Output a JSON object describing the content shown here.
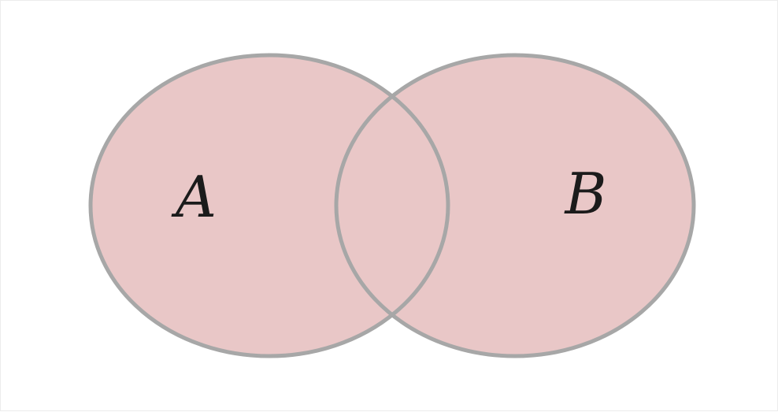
{
  "diagram": {
    "type": "venn",
    "sets": [
      {
        "label": "A"
      },
      {
        "label": "B"
      }
    ],
    "colors": {
      "fill": "#e9c7c7",
      "stroke": "#a7a7a7",
      "label": "#1b1b1b",
      "background": "#ffffff"
    }
  }
}
